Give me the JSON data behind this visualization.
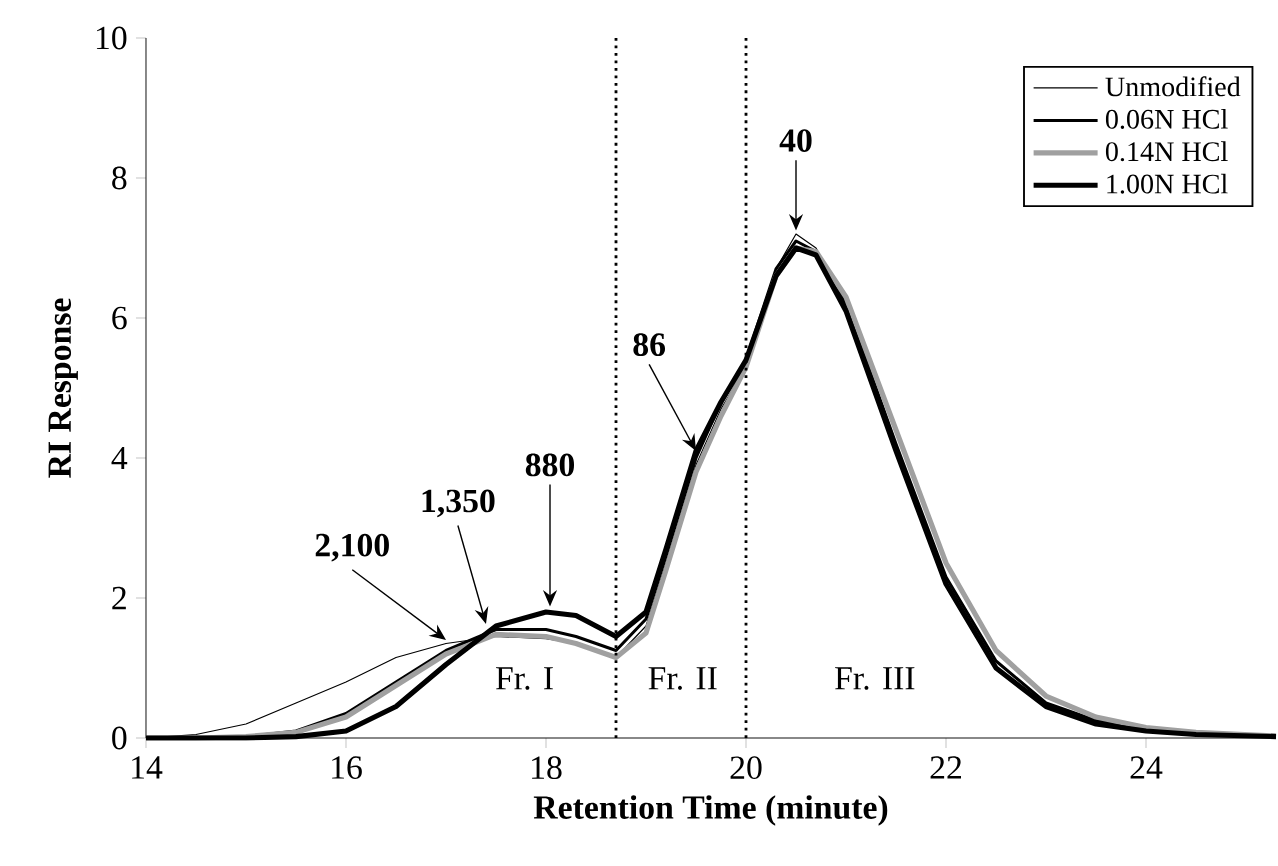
{
  "chart_data": {
    "type": "line",
    "xlabel": "Retention Time (minute)",
    "ylabel": "RI Response",
    "xlim": [
      14,
      25.3
    ],
    "ylim": [
      0,
      10
    ],
    "xticks": [
      14,
      16,
      18,
      20,
      22,
      24
    ],
    "yticks": [
      0,
      2,
      4,
      6,
      8,
      10
    ],
    "legend": "top right",
    "grid": false,
    "marker": "none",
    "line_style": "solid",
    "x": [
      14,
      14.5,
      15,
      15.5,
      16,
      16.5,
      17,
      17.5,
      18,
      18.3,
      18.7,
      19,
      19.2,
      19.5,
      19.75,
      20,
      20.3,
      20.5,
      20.7,
      21,
      21.5,
      22,
      22.5,
      23,
      23.5,
      24,
      24.5,
      25.3
    ],
    "series": [
      {
        "name": "Unmodified",
        "color": "#000000",
        "values": [
          0,
          0.05,
          0.2,
          0.5,
          0.8,
          1.15,
          1.35,
          1.45,
          1.42,
          1.35,
          1.15,
          1.6,
          2.5,
          3.9,
          4.7,
          5.3,
          6.7,
          7.2,
          7.0,
          6.2,
          4.2,
          2.3,
          1.1,
          0.5,
          0.25,
          0.12,
          0.06,
          0.02
        ]
      },
      {
        "name": "0.06N HCl",
        "color": "#000000",
        "values": [
          0,
          0,
          0.02,
          0.1,
          0.35,
          0.8,
          1.25,
          1.55,
          1.55,
          1.45,
          1.25,
          1.7,
          2.6,
          4.0,
          4.8,
          5.4,
          6.7,
          7.1,
          6.95,
          6.2,
          4.2,
          2.3,
          1.1,
          0.5,
          0.25,
          0.12,
          0.06,
          0.02
        ]
      },
      {
        "name": "0.14N HCl",
        "color": "#a0a0a0",
        "values": [
          0,
          0,
          0.02,
          0.08,
          0.3,
          0.75,
          1.2,
          1.48,
          1.45,
          1.35,
          1.15,
          1.5,
          2.4,
          3.8,
          4.6,
          5.3,
          6.6,
          7.0,
          6.95,
          6.3,
          4.4,
          2.5,
          1.25,
          0.6,
          0.3,
          0.15,
          0.08,
          0.03
        ]
      },
      {
        "name": "1.00N HCl",
        "color": "#000000",
        "values": [
          0,
          0,
          0,
          0.02,
          0.1,
          0.45,
          1.05,
          1.6,
          1.8,
          1.75,
          1.45,
          1.8,
          2.7,
          4.1,
          4.8,
          5.4,
          6.6,
          7.0,
          6.9,
          6.1,
          4.1,
          2.2,
          1.0,
          0.45,
          0.2,
          0.1,
          0.05,
          0.02
        ]
      }
    ],
    "ref_lines": [
      {
        "axis": "x",
        "value": 18.7,
        "line_style": "dotted"
      },
      {
        "axis": "x",
        "value": 20.0,
        "line_style": "dotted"
      }
    ],
    "annotations": [
      {
        "text": "2,100",
        "x": 17.0,
        "y": 1.4
      },
      {
        "text": "1,350",
        "x": 17.4,
        "y": 1.63
      },
      {
        "text": "880",
        "x": 18.04,
        "y": 1.88
      },
      {
        "text": "86",
        "x": 19.5,
        "y": 4.1
      },
      {
        "text": "40",
        "x": 20.5,
        "y": 7.25
      },
      "Fr. I",
      "Fr. II",
      "Fr. III"
    ]
  }
}
